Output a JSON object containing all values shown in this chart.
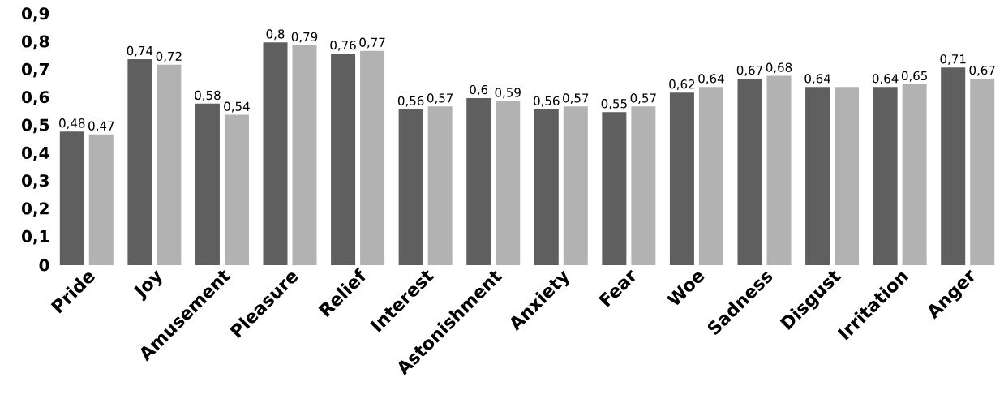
{
  "chart_data": {
    "type": "bar",
    "categories": [
      "Pride",
      "Joy",
      "Amusement",
      "Pleasure",
      "Relief",
      "Interest",
      "Astonishment",
      "Anxiety",
      "Fear",
      "Woe",
      "Sadness",
      "Disgust",
      "Irritation",
      "Anger"
    ],
    "series": [
      {
        "color": "#5f5f5f",
        "values": [
          0.48,
          0.74,
          0.58,
          0.8,
          0.76,
          0.56,
          0.6,
          0.56,
          0.55,
          0.62,
          0.67,
          0.64,
          0.64,
          0.71
        ],
        "value_labels": [
          "0,48",
          "0,74",
          "0,58",
          "0,8",
          "0,76",
          "0,56",
          "0,6",
          "0,56",
          "0,55",
          "0,62",
          "0,67",
          "0,64",
          "0,64",
          "0,71"
        ]
      },
      {
        "color": "#b2b2b2",
        "values": [
          0.47,
          0.72,
          0.54,
          0.79,
          0.77,
          0.57,
          0.59,
          0.57,
          0.57,
          0.64,
          0.68,
          0.64,
          0.65,
          0.67
        ],
        "value_labels": [
          "0,47",
          "0,72",
          "0,54",
          "0,79",
          "0,77",
          "0,57",
          "0,59",
          "0,57",
          "0,57",
          "0,64",
          "0,68",
          null,
          "0,65",
          "0,67"
        ]
      }
    ],
    "ylim": [
      0,
      0.9
    ],
    "yticks": [
      {
        "value": 0,
        "label": "0"
      },
      {
        "value": 0.1,
        "label": "0,1"
      },
      {
        "value": 0.2,
        "label": "0,2"
      },
      {
        "value": 0.3,
        "label": "0,3"
      },
      {
        "value": 0.4,
        "label": "0,4"
      },
      {
        "value": 0.5,
        "label": "0,5"
      },
      {
        "value": 0.6,
        "label": "0,6"
      },
      {
        "value": 0.7,
        "label": "0,7"
      },
      {
        "value": 0.8,
        "label": "0,8"
      },
      {
        "value": 0.9,
        "label": "0,9"
      }
    ],
    "grid": false
  }
}
